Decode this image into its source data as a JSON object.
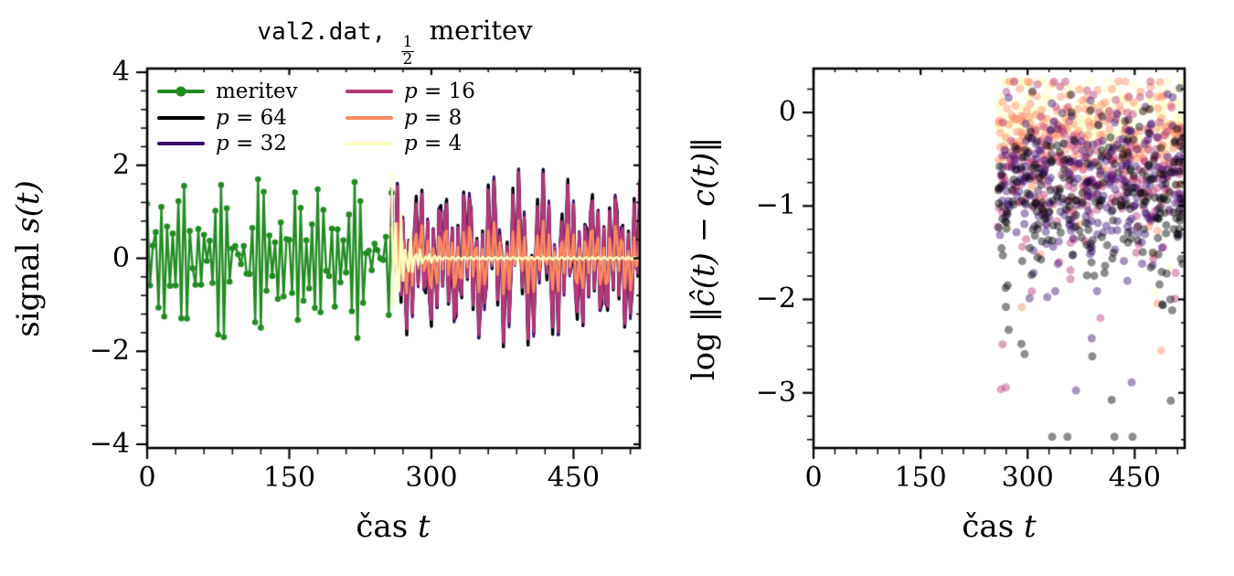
{
  "chart_data": [
    {
      "type": "line",
      "title": {
        "code": "val2.dat,",
        "frac_num": "1",
        "frac_den": "2",
        "rest": "meritev"
      },
      "xlabel": {
        "prefix": "čas ",
        "math": "t"
      },
      "ylabel": {
        "prefix": "signal ",
        "math": "s(t)"
      },
      "xlim": [
        0,
        520
      ],
      "ylim": [
        -4.08,
        4.08
      ],
      "xticks": [
        0,
        150,
        300,
        450
      ],
      "yticks": [
        4,
        2,
        0,
        -2,
        -4
      ],
      "x_minor_step": 30,
      "y_minor_step": 0.4,
      "split_t": 258,
      "grid": false,
      "legend_position": "upper-left",
      "series": [
        {
          "name": "meritev",
          "color": "#228B22",
          "linewidth": 2.4,
          "markers": true,
          "marker_size": 6.6,
          "sample_step": 3,
          "t_start": 0,
          "t_end": 258,
          "components": [
            [
              1.12,
              0.98,
              0.4
            ],
            [
              0.62,
              2.9,
              1.7
            ],
            [
              0.15,
              0.21,
              0.9
            ]
          ]
        },
        {
          "name": "p = 64",
          "color": "#000004",
          "linewidth": 3.4,
          "markers": false,
          "sample_step": 2,
          "t_start": 258,
          "t_end": 520,
          "components": [
            [
              1.19,
              0.98,
              0.4
            ],
            [
              0.66,
              2.9,
              1.7
            ],
            [
              0.15,
              0.21,
              0.9
            ]
          ]
        },
        {
          "name": "p = 32",
          "color": "#3b0f70",
          "linewidth": 3.0,
          "markers": false,
          "sample_step": 2,
          "t_start": 258,
          "t_end": 520,
          "components": [
            [
              1.15,
              0.98,
              0.55
            ],
            [
              0.64,
              2.9,
              1.85
            ],
            [
              0.15,
              0.21,
              0.9
            ]
          ]
        },
        {
          "name": "p = 16",
          "color": "#b73779",
          "linewidth": 3.0,
          "markers": false,
          "sample_step": 2,
          "t_start": 258,
          "t_end": 520,
          "components": [
            [
              1.12,
              0.98,
              0.47
            ],
            [
              0.62,
              2.9,
              1.77
            ],
            [
              0.15,
              0.21,
              0.9
            ]
          ]
        },
        {
          "name": "p = 8",
          "color": "#fc8961",
          "linewidth": 2.8,
          "markers": false,
          "sample_step": 2,
          "t_start": 258,
          "t_end": 520,
          "components": [
            [
              0.52,
              0.98,
              0.6
            ],
            [
              0.3,
              2.9,
              1.9
            ]
          ]
        },
        {
          "name": "p = 4",
          "color": "#fcfdbf",
          "linewidth": 2.6,
          "markers": false,
          "sample_step": 2,
          "t_start": 258,
          "t_end": 520,
          "components": [
            [
              0.03,
              0.98,
              0.0
            ]
          ],
          "envelope": {
            "t0": 258,
            "tau": 13,
            "components": [
              [
                1.75,
                1.9,
                1.2
              ],
              [
                0.5,
                0.7,
                0.3
              ]
            ]
          }
        }
      ],
      "legend": {
        "columns": 2,
        "items": [
          {
            "label": "meritev",
            "color": "#228B22",
            "marker": true
          },
          {
            "var": "p",
            "eq": " = 64",
            "color": "#000004"
          },
          {
            "var": "p",
            "eq": " = 32",
            "color": "#3b0f70"
          },
          {
            "var": "p",
            "eq": " = 16",
            "color": "#b73779"
          },
          {
            "var": "p",
            "eq": " = 8",
            "color": "#fc8961"
          },
          {
            "var": "p",
            "eq": " = 4",
            "color": "#fcfdbf"
          }
        ]
      }
    },
    {
      "type": "scatter",
      "xlabel": {
        "prefix": "čas ",
        "math": "t"
      },
      "ylabel": {
        "prefix": "log ",
        "math": "‖ĉ(t) − c(t)‖"
      },
      "xlim": [
        0,
        520
      ],
      "ylim": [
        -3.59,
        0.47
      ],
      "xticks": [
        0,
        150,
        300,
        450
      ],
      "yticks": [
        0,
        -1,
        -2,
        -3
      ],
      "x_minor_step": 30,
      "y_minor_step": 0.25,
      "t_range": [
        258,
        520
      ],
      "alpha": 0.45,
      "dot_radius": 4.5,
      "seed": 42,
      "y_clamp": [
        -3.47,
        0.33
      ],
      "grid": false,
      "groups": [
        {
          "name": "p = 4",
          "color": "#fcfdbf",
          "count": 256,
          "center": -0.02,
          "sigma": 0.22,
          "tail_prob": 0.05,
          "tail_max": 2.4
        },
        {
          "name": "p = 8",
          "color": "#fc8961",
          "count": 256,
          "center": -0.28,
          "sigma": 0.28,
          "tail_prob": 0.06,
          "tail_max": 2.6
        },
        {
          "name": "p = 16",
          "color": "#b73779",
          "count": 256,
          "center": -0.58,
          "sigma": 0.38,
          "tail_prob": 0.08,
          "tail_max": 2.7
        },
        {
          "name": "p = 32",
          "color": "#3b0f70",
          "count": 256,
          "center": -0.78,
          "sigma": 0.4,
          "tail_prob": 0.08,
          "tail_max": 2.7
        },
        {
          "name": "p = 64",
          "color": "#000004",
          "count": 256,
          "center": -0.85,
          "sigma": 0.42,
          "tail_prob": 0.09,
          "tail_max": 2.7
        }
      ]
    }
  ]
}
